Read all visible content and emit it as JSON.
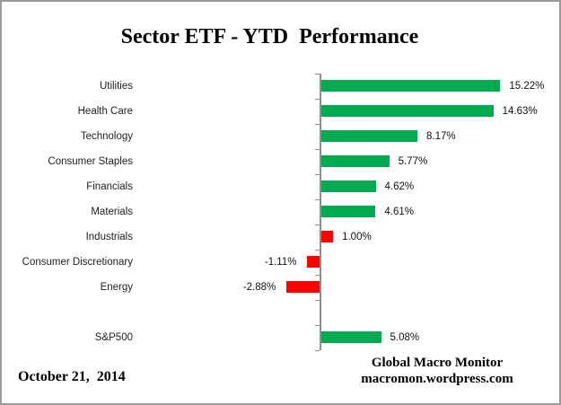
{
  "title": "Sector ETF - YTD  Performance",
  "footer": {
    "date": "October 21,  2014",
    "brand_line1": "Global Macro Monitor",
    "brand_line2": "macromon.wordpress.com"
  },
  "colors": {
    "positive_green": "#00AB4F",
    "negative_red": "#FE0000",
    "axis_gray": "#8F8F8F",
    "frame_border": "#9B9B9B"
  },
  "chart_data": {
    "type": "bar",
    "orientation": "horizontal",
    "title": "Sector ETF - YTD Performance",
    "categories": [
      "Utilities",
      "Health Care",
      "Technology",
      "Consumer Staples",
      "Financials",
      "Materials",
      "Industrials",
      "Consumer Discretionary",
      "Energy",
      "S&P500"
    ],
    "values": [
      15.22,
      14.63,
      8.17,
      5.77,
      4.62,
      4.61,
      1.0,
      -1.11,
      -2.88,
      5.08
    ],
    "value_labels": [
      "15.22%",
      "14.63%",
      "8.17%",
      "5.77%",
      "4.62%",
      "4.61%",
      "1.00%",
      "-1.11%",
      "-2.88%",
      "5.08%"
    ],
    "bar_colors": [
      "green",
      "green",
      "green",
      "green",
      "green",
      "green",
      "red",
      "red",
      "red",
      "green"
    ],
    "gap_after_index": 8,
    "xlim": [
      -3.5,
      16.5
    ],
    "xlabel": "",
    "ylabel": "",
    "legend": false,
    "gridlines": false,
    "axis_position_note": "single vertical baseline at 0 with category ticks"
  }
}
